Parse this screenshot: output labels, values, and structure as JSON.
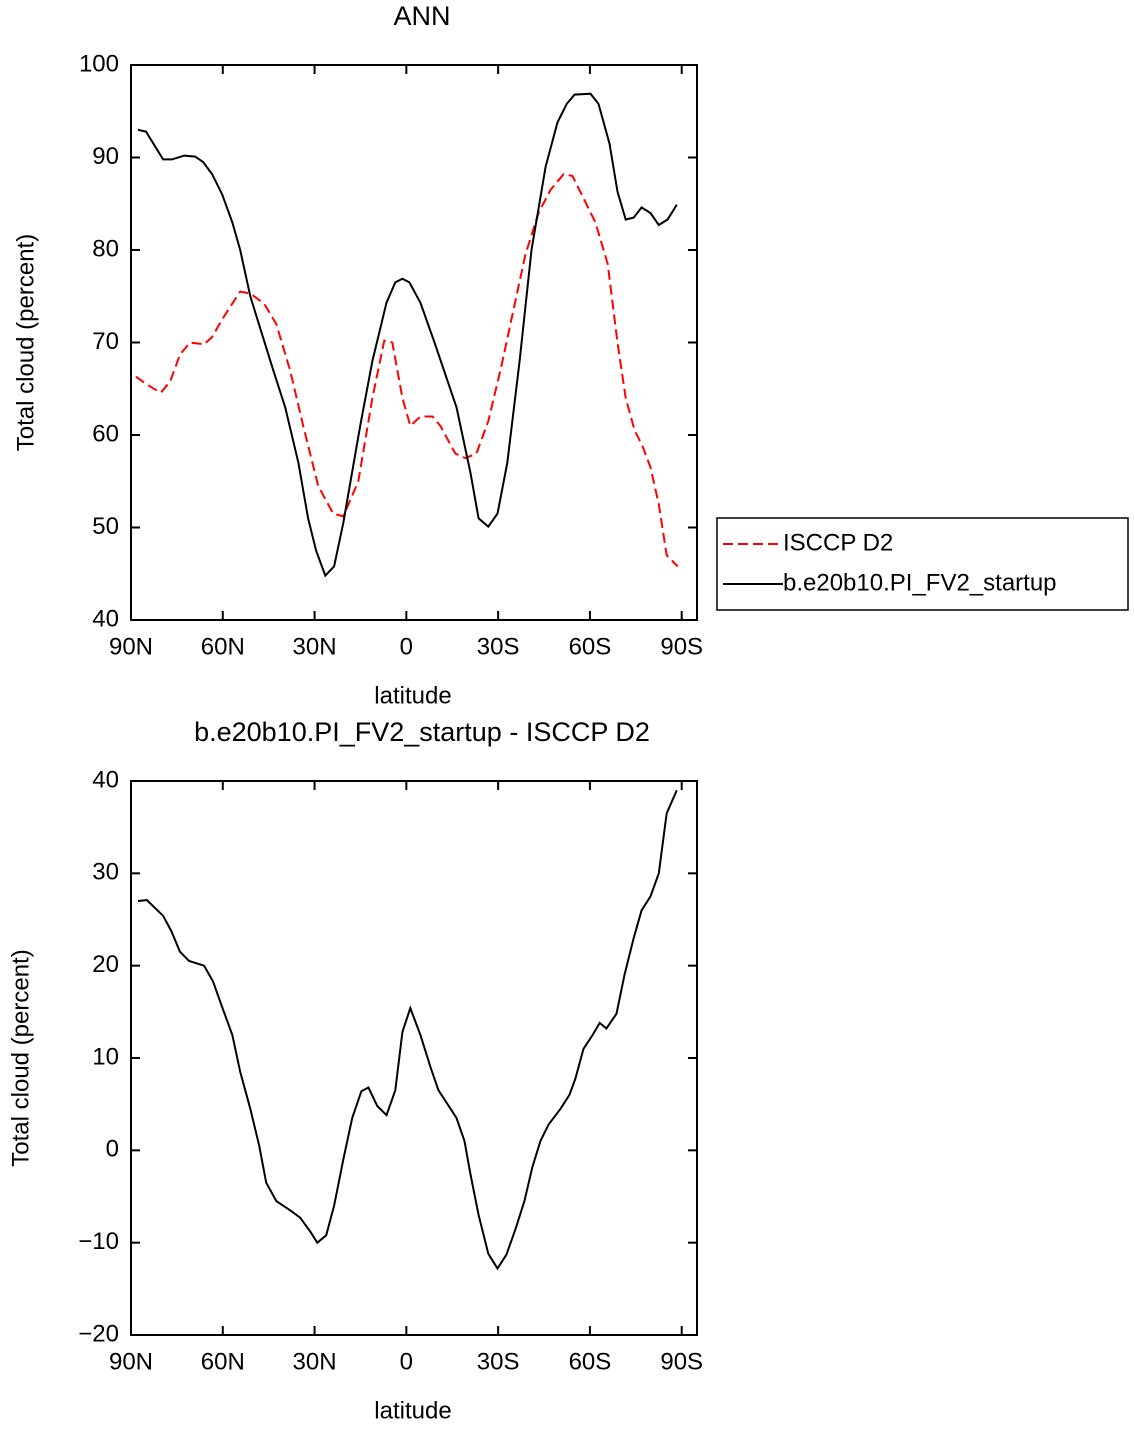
{
  "chart_data": [
    {
      "type": "line",
      "title": "ANN",
      "xlabel": "latitude",
      "ylabel": "Total cloud (percent)",
      "xlim": [
        90,
        -95
      ],
      "ylim": [
        40,
        100
      ],
      "xticks": [
        {
          "value": 90,
          "label": "90N"
        },
        {
          "value": 60,
          "label": "60N"
        },
        {
          "value": 30,
          "label": "30N"
        },
        0,
        {
          "value": -30,
          "label": "30S"
        },
        {
          "value": -60,
          "label": "60S"
        },
        {
          "value": -90,
          "label": "90S"
        }
      ],
      "yticks": [
        40,
        50,
        60,
        70,
        80,
        90,
        100
      ],
      "legend": "right",
      "series": [
        {
          "name": "ISCCP D2",
          "color": "#ff0000",
          "dash": true,
          "x": [
            88.4,
            85.4,
            82.5,
            80.2,
            77.2,
            74.0,
            70.7,
            66.1,
            63.5,
            60.2,
            56.9,
            54.3,
            51.0,
            46.5,
            42.5,
            38.0,
            33.7,
            28.8,
            23.9,
            20.6,
            15.7,
            11.1,
            7.2,
            4.6,
            1.3,
            -1.3,
            -4.6,
            -8.5,
            -11.1,
            -16.0,
            -19.3,
            -22.9,
            -26.8,
            -31.1,
            -35.3,
            -38.9,
            -43.2,
            -47.1,
            -51.4,
            -54.3,
            -58.2,
            -61.8,
            -65.8,
            -69.0,
            -71.7,
            -74.6,
            -77.2,
            -79.8,
            -82.5,
            -85.1,
            -88.7
          ],
          "values": [
            66.3,
            65.6,
            65.0,
            64.6,
            65.8,
            68.7,
            70.0,
            69.8,
            70.6,
            72.5,
            74.2,
            75.5,
            75.3,
            74.2,
            72.0,
            67.0,
            61.0,
            54.5,
            51.5,
            51.2,
            55.0,
            64.0,
            70.2,
            70.0,
            64.0,
            61.0,
            62.0,
            62.0,
            61.0,
            58.0,
            57.5,
            58.0,
            61.5,
            67.5,
            74.0,
            79.5,
            84.0,
            86.5,
            88.2,
            88.0,
            85.4,
            83.0,
            78.5,
            70.0,
            64.0,
            60.5,
            58.8,
            56.5,
            52.5,
            47.0,
            45.8
          ]
        },
        {
          "name": "b.e20b10.PI_FV2_startup",
          "color": "#000000",
          "dash": false,
          "x": [
            87.7,
            85.1,
            79.5,
            76.6,
            72.6,
            69.0,
            66.4,
            63.5,
            60.2,
            56.9,
            54.3,
            51.0,
            46.8,
            43.5,
            39.6,
            35.3,
            32.1,
            29.5,
            26.5,
            23.6,
            20.6,
            15.1,
            11.1,
            6.5,
            3.6,
            1.3,
            -1.0,
            -4.6,
            -9.2,
            -16.4,
            -20.9,
            -23.6,
            -26.8,
            -29.8,
            -33.0,
            -37.0,
            -40.9,
            -45.5,
            -49.4,
            -52.4,
            -55.0,
            -60.2,
            -62.8,
            -66.4,
            -69.0,
            -71.7,
            -74.3,
            -76.9,
            -79.8,
            -82.5,
            -85.4,
            -88.4
          ],
          "values": [
            93.0,
            92.8,
            89.8,
            89.8,
            90.2,
            90.1,
            89.5,
            88.2,
            86.0,
            83.0,
            80.0,
            75.0,
            70.5,
            67.0,
            63.0,
            57.0,
            51.0,
            47.5,
            44.8,
            45.8,
            50.5,
            61.0,
            68.0,
            74.3,
            76.5,
            76.9,
            76.5,
            74.3,
            70.0,
            63.0,
            56.0,
            51.0,
            50.1,
            51.5,
            57.0,
            68.0,
            80.0,
            89.0,
            93.8,
            95.8,
            96.8,
            96.9,
            95.8,
            91.5,
            86.3,
            83.3,
            83.5,
            84.6,
            84.0,
            82.7,
            83.3,
            84.9
          ]
        }
      ]
    },
    {
      "type": "line",
      "title": "b.e20b10.PI_FV2_startup - ISCCP D2",
      "xlabel": "latitude",
      "ylabel": "Total cloud (percent)",
      "xlim": [
        90,
        -95
      ],
      "ylim": [
        -20,
        40
      ],
      "xticks": [
        {
          "value": 90,
          "label": "90N"
        },
        {
          "value": 60,
          "label": "60N"
        },
        {
          "value": 30,
          "label": "30N"
        },
        0,
        {
          "value": -30,
          "label": "30S"
        },
        {
          "value": -60,
          "label": "60S"
        },
        {
          "value": -90,
          "label": "90S"
        }
      ],
      "yticks": [
        {
          "value": -20,
          "label": "−20"
        },
        {
          "value": -10,
          "label": "−10"
        },
        0,
        10,
        20,
        30,
        40
      ],
      "series": [
        {
          "color": "#000000",
          "dash": false,
          "x": [
            87.7,
            84.8,
            79.5,
            76.9,
            74.0,
            71.0,
            66.1,
            63.2,
            60.2,
            56.9,
            54.3,
            51.0,
            48.1,
            45.8,
            42.5,
            38.0,
            34.7,
            31.4,
            29.1,
            26.2,
            23.6,
            20.6,
            17.7,
            14.7,
            12.4,
            9.5,
            6.5,
            3.6,
            1.3,
            -1.3,
            -4.6,
            -7.9,
            -10.5,
            -16.4,
            -19.0,
            -20.9,
            -23.6,
            -26.8,
            -29.8,
            -32.7,
            -35.7,
            -38.6,
            -41.2,
            -43.8,
            -46.5,
            -50.4,
            -53.3,
            -55.3,
            -57.9,
            -60.9,
            -63.2,
            -65.4,
            -68.7,
            -71.3,
            -74.3,
            -76.9,
            -79.8,
            -82.5,
            -85.1,
            -88.4
          ],
          "values": [
            27.0,
            27.1,
            25.4,
            23.8,
            21.5,
            20.5,
            20.0,
            18.3,
            15.5,
            12.5,
            8.5,
            4.5,
            0.5,
            -3.5,
            -5.5,
            -6.5,
            -7.3,
            -8.8,
            -10.0,
            -9.2,
            -6.0,
            -1.0,
            3.5,
            6.4,
            6.8,
            4.8,
            3.8,
            6.5,
            12.8,
            15.4,
            12.5,
            9.0,
            6.5,
            3.5,
            1.0,
            -2.5,
            -7.0,
            -11.2,
            -12.8,
            -11.3,
            -8.5,
            -5.5,
            -1.8,
            1.0,
            2.8,
            4.5,
            6.0,
            7.8,
            11.0,
            12.5,
            13.8,
            13.2,
            14.8,
            19.0,
            23.0,
            26.0,
            27.5,
            30.0,
            36.5,
            39.0
          ]
        }
      ]
    }
  ]
}
